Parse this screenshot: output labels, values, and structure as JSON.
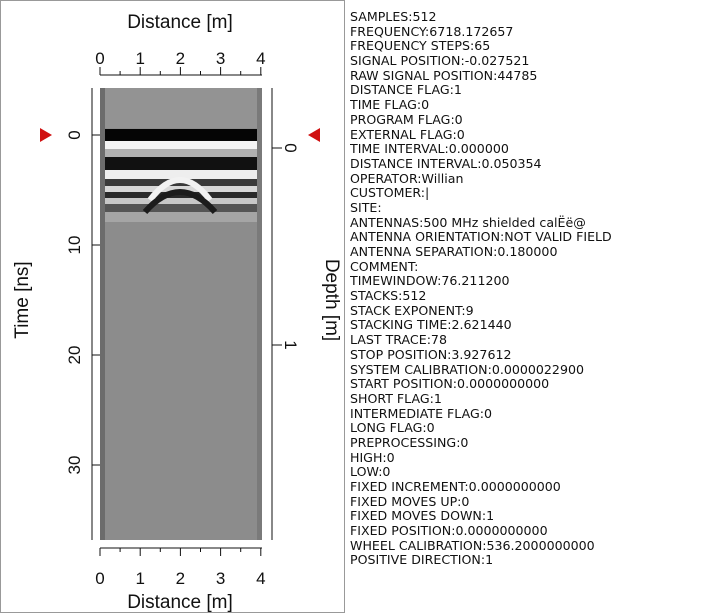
{
  "plot": {
    "top_axis_label": "Distance [m]",
    "bottom_axis_label": "Distance [m]",
    "left_axis_label": "Time [ns]",
    "right_axis_label": "Depth [m]",
    "distance_ticks": [
      0,
      1,
      2,
      3,
      4
    ],
    "time_ticks": [
      0,
      10,
      20,
      30
    ],
    "depth_ticks": [
      0,
      1
    ]
  },
  "header_lines": [
    "SAMPLES:512",
    "FREQUENCY:6718.172657",
    "FREQUENCY STEPS:65",
    "SIGNAL POSITION:-0.027521",
    "RAW SIGNAL POSITION:44785",
    "DISTANCE FLAG:1",
    "TIME FLAG:0",
    "PROGRAM FLAG:0",
    "EXTERNAL FLAG:0",
    "TIME INTERVAL:0.000000",
    "DISTANCE INTERVAL:0.050354",
    "OPERATOR:Willian",
    "CUSTOMER:|",
    "SITE:",
    "ANTENNAS:500 MHz shielded calËë@",
    "ANTENNA ORIENTATION:NOT VALID FIELD",
    "ANTENNA SEPARATION:0.180000",
    "COMMENT:",
    "TIMEWINDOW:76.211200",
    "STACKS:512",
    "STACK EXPONENT:9",
    "STACKING TIME:2.621440",
    "LAST TRACE:78",
    "STOP POSITION:3.927612",
    "SYSTEM CALIBRATION:0.0000022900",
    "START POSITION:0.0000000000",
    "SHORT FLAG:1",
    "INTERMEDIATE FLAG:0",
    "LONG FLAG:0",
    "PREPROCESSING:0",
    "HIGH:0",
    "LOW:0",
    "FIXED INCREMENT:0.0000000000",
    "FIXED MOVES UP:0",
    "FIXED MOVES DOWN:1",
    "FIXED POSITION:0.0000000000",
    "WHEEL CALIBRATION:536.2000000000",
    "POSITIVE DIRECTION:1"
  ]
}
